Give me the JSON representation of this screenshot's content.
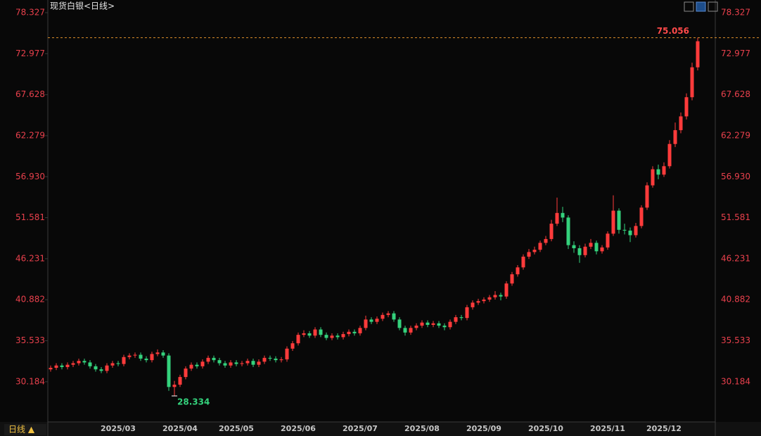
{
  "chart_data": {
    "type": "candlestick",
    "title": "现货白银<日线>",
    "up_color": "#ff3b3b",
    "down_color": "#34d27c",
    "ylim": [
      24.94,
      79.98
    ],
    "yticks": [
      78.327,
      72.977,
      67.628,
      62.279,
      {
        "value": 56.93,
        "label": "56.930"
      },
      51.581,
      46.231,
      40.882,
      35.533,
      30.184
    ],
    "categories": [
      null,
      null,
      null,
      null,
      null,
      null,
      null,
      null,
      null,
      null,
      null,
      null,
      "2025/03",
      null,
      null,
      null,
      null,
      null,
      null,
      null,
      null,
      null,
      null,
      "2025/04",
      null,
      null,
      null,
      null,
      null,
      null,
      null,
      null,
      null,
      "2025/05",
      null,
      null,
      null,
      null,
      null,
      null,
      null,
      null,
      null,
      null,
      "2025/06",
      null,
      null,
      null,
      null,
      null,
      null,
      null,
      null,
      null,
      null,
      "2025/07",
      null,
      null,
      null,
      null,
      null,
      null,
      null,
      null,
      null,
      null,
      "2025/08",
      null,
      null,
      null,
      null,
      null,
      null,
      null,
      null,
      null,
      null,
      "2025/09",
      null,
      null,
      null,
      null,
      null,
      null,
      null,
      null,
      null,
      null,
      "2025/10",
      null,
      null,
      null,
      null,
      null,
      null,
      null,
      null,
      null,
      null,
      "2025/11",
      null,
      null,
      null,
      null,
      null,
      null,
      null,
      null,
      null,
      "2025/12",
      null,
      null,
      null,
      null,
      null,
      null
    ],
    "open": [
      31.8,
      32.0,
      32.3,
      32.1,
      32.4,
      32.6,
      32.9,
      32.7,
      32.2,
      31.8,
      31.6,
      32.3,
      32.6,
      32.5,
      33.4,
      33.6,
      33.7,
      33.2,
      33.0,
      33.8,
      34.0,
      33.6,
      29.5,
      29.8,
      30.8,
      31.9,
      32.4,
      32.2,
      32.8,
      33.3,
      33.0,
      32.6,
      32.3,
      32.7,
      32.5,
      32.6,
      32.9,
      32.4,
      32.8,
      33.3,
      33.2,
      33.0,
      33.1,
      34.5,
      35.2,
      36.3,
      36.5,
      36.2,
      37.0,
      36.3,
      35.9,
      36.2,
      36.0,
      36.4,
      36.7,
      36.5,
      37.2,
      38.3,
      38.0,
      38.4,
      38.9,
      39.1,
      38.3,
      37.2,
      36.6,
      37.2,
      37.5,
      37.9,
      37.6,
      37.8,
      37.5,
      37.3,
      38.0,
      38.6,
      38.5,
      39.9,
      40.5,
      40.7,
      40.9,
      41.2,
      41.5,
      41.3,
      43.0,
      44.2,
      45.1,
      46.5,
      47.1,
      47.4,
      48.3,
      48.8,
      50.8,
      52.2,
      51.6,
      48.0,
      47.6,
      46.7,
      47.8,
      48.3,
      47.2,
      47.7,
      49.5,
      52.5,
      50.0,
      49.9,
      49.3,
      50.5,
      52.9,
      55.8,
      57.9,
      57.2,
      58.3,
      61.2,
      63.0,
      64.8,
      67.3,
      71.2
    ],
    "high": [
      32.3,
      32.6,
      32.6,
      32.7,
      32.9,
      33.2,
      33.2,
      33.0,
      32.5,
      32.1,
      32.6,
      32.9,
      32.9,
      33.7,
      33.9,
      34.0,
      34.0,
      33.5,
      34.1,
      34.4,
      34.3,
      33.9,
      30.3,
      31.1,
      32.2,
      32.7,
      32.7,
      33.1,
      33.6,
      33.6,
      33.3,
      32.9,
      33.0,
      33.0,
      32.9,
      33.2,
      33.2,
      33.1,
      33.6,
      33.6,
      33.5,
      33.4,
      34.8,
      35.5,
      36.6,
      36.9,
      36.8,
      37.3,
      37.3,
      36.6,
      36.5,
      36.5,
      36.7,
      37.0,
      37.0,
      37.5,
      38.8,
      38.6,
      38.7,
      39.2,
      39.4,
      39.4,
      38.6,
      37.5,
      37.5,
      37.8,
      38.2,
      38.2,
      38.1,
      38.1,
      37.8,
      38.3,
      38.9,
      38.9,
      40.2,
      40.8,
      41.0,
      41.2,
      41.5,
      42.0,
      41.8,
      43.3,
      44.5,
      45.4,
      46.8,
      47.5,
      47.8,
      48.6,
      49.2,
      51.3,
      54.2,
      53.0,
      51.9,
      48.5,
      48.0,
      48.2,
      48.8,
      48.6,
      48.0,
      49.8,
      54.5,
      52.8,
      50.8,
      50.3,
      50.9,
      53.2,
      56.2,
      58.3,
      58.5,
      58.8,
      61.7,
      64.0,
      65.3,
      67.8,
      71.8,
      75.056
    ],
    "low": [
      31.5,
      31.7,
      31.8,
      31.8,
      32.1,
      32.3,
      32.4,
      31.9,
      31.5,
      31.3,
      31.3,
      32.0,
      32.2,
      32.2,
      33.1,
      33.3,
      32.9,
      32.7,
      32.7,
      33.5,
      33.3,
      29.0,
      28.334,
      29.5,
      30.5,
      31.6,
      31.9,
      31.9,
      32.5,
      32.7,
      32.3,
      32.0,
      32.0,
      32.2,
      32.2,
      32.3,
      32.1,
      32.1,
      32.5,
      32.9,
      32.7,
      32.7,
      32.8,
      34.2,
      34.9,
      36.0,
      35.9,
      35.9,
      36.0,
      35.6,
      35.6,
      35.7,
      35.7,
      36.1,
      36.2,
      36.2,
      36.9,
      37.7,
      37.7,
      38.1,
      38.6,
      38.0,
      36.9,
      36.2,
      36.3,
      36.9,
      37.2,
      37.3,
      37.3,
      37.2,
      36.9,
      37.0,
      37.7,
      38.2,
      38.2,
      39.6,
      40.2,
      40.4,
      40.6,
      40.9,
      40.8,
      41.0,
      42.7,
      43.9,
      44.8,
      46.2,
      46.8,
      47.1,
      48.0,
      48.5,
      50.5,
      51.0,
      47.5,
      47.0,
      45.7,
      46.4,
      47.5,
      46.8,
      46.9,
      47.4,
      49.2,
      49.5,
      49.4,
      48.4,
      49.0,
      50.2,
      52.6,
      55.5,
      56.6,
      56.9,
      58.0,
      60.8,
      62.6,
      64.4,
      66.9,
      70.8
    ],
    "close": [
      32.0,
      32.3,
      32.1,
      32.4,
      32.6,
      32.9,
      32.7,
      32.2,
      31.8,
      31.6,
      32.3,
      32.6,
      32.5,
      33.4,
      33.6,
      33.7,
      33.2,
      33.0,
      33.8,
      34.0,
      33.6,
      29.5,
      29.8,
      30.8,
      31.9,
      32.4,
      32.2,
      32.8,
      33.3,
      33.0,
      32.6,
      32.3,
      32.7,
      32.5,
      32.6,
      32.9,
      32.4,
      32.8,
      33.3,
      33.2,
      33.0,
      33.1,
      34.5,
      35.2,
      36.3,
      36.5,
      36.2,
      37.0,
      36.3,
      35.9,
      36.2,
      36.0,
      36.4,
      36.7,
      36.5,
      37.2,
      38.3,
      38.0,
      38.4,
      38.9,
      39.1,
      38.3,
      37.2,
      36.6,
      37.2,
      37.5,
      37.9,
      37.6,
      37.8,
      37.5,
      37.3,
      38.0,
      38.6,
      38.5,
      39.9,
      40.5,
      40.7,
      40.9,
      41.2,
      41.5,
      41.3,
      43.0,
      44.2,
      45.1,
      46.5,
      47.1,
      47.4,
      48.3,
      48.8,
      50.8,
      52.2,
      51.6,
      48.0,
      47.6,
      46.7,
      47.8,
      48.3,
      47.2,
      47.7,
      49.5,
      52.5,
      50.0,
      49.9,
      49.3,
      50.5,
      52.9,
      55.8,
      57.9,
      57.2,
      58.3,
      61.2,
      63.0,
      64.8,
      67.3,
      71.2,
      74.6
    ]
  },
  "ui": {
    "period_button": "日线 ▲"
  }
}
